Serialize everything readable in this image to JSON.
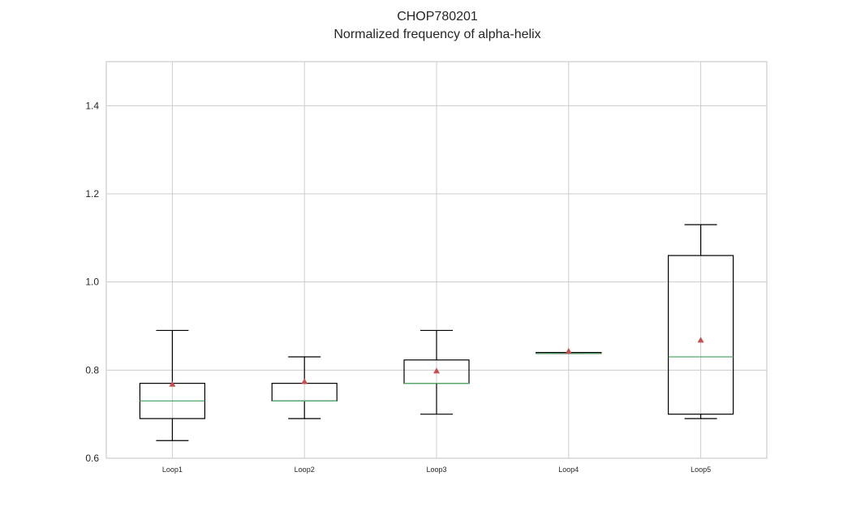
{
  "chart_data": {
    "type": "box",
    "title": "CHOP780201",
    "subtitle": "Normalized frequency of alpha-helix",
    "xlabel": "",
    "ylabel": "",
    "ylim": [
      0.6,
      1.5
    ],
    "yticks": [
      0.6,
      0.8,
      1.0,
      1.2,
      1.4
    ],
    "ytick_labels": [
      "0.6",
      "0.8",
      "1.0",
      "1.2",
      "1.4"
    ],
    "grid": true,
    "categories": [
      "Loop1",
      "Loop2",
      "Loop3",
      "Loop4",
      "Loop5"
    ],
    "boxes": [
      {
        "name": "Loop1",
        "whisker_low": 0.64,
        "q1": 0.69,
        "median": 0.73,
        "q3": 0.77,
        "whisker_high": 0.89,
        "mean": 0.768
      },
      {
        "name": "Loop2",
        "whisker_low": 0.69,
        "q1": 0.73,
        "median": 0.73,
        "q3": 0.77,
        "whisker_high": 0.83,
        "mean": 0.774
      },
      {
        "name": "Loop3",
        "whisker_low": 0.7,
        "q1": 0.77,
        "median": 0.77,
        "q3": 0.823,
        "whisker_high": 0.89,
        "mean": 0.798
      },
      {
        "name": "Loop4",
        "whisker_low": 0.838,
        "q1": 0.838,
        "median": 0.838,
        "q3": 0.84,
        "whisker_high": 0.84,
        "mean": 0.843
      },
      {
        "name": "Loop5",
        "whisker_low": 0.69,
        "q1": 0.7,
        "median": 0.83,
        "q3": 1.06,
        "whisker_high": 1.13,
        "mean": 0.868
      }
    ],
    "colors": {
      "box": "#000000",
      "median": "#55a868",
      "mean_marker": "#c44e52",
      "grid": "#cccccc",
      "frame": "#cccccc"
    }
  }
}
